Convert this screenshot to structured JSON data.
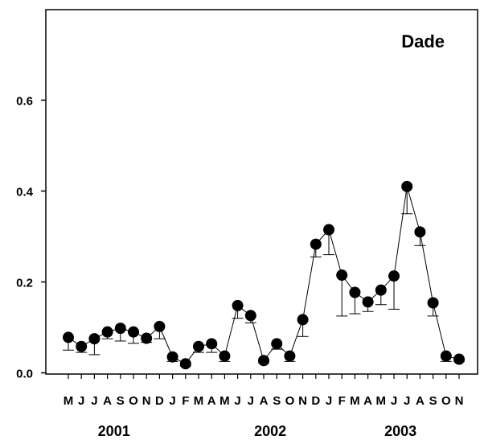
{
  "chart_data": {
    "type": "line",
    "title": "Dade",
    "xlabel": "",
    "ylabel": "",
    "ylim": [
      0,
      0.75
    ],
    "yticks": [
      0.0,
      0.2,
      0.4,
      0.6
    ],
    "ytick_labels": [
      "0.0",
      "0.2",
      "0.4",
      "0.6"
    ],
    "month_labels": [
      "M",
      "J",
      "J",
      "A",
      "S",
      "O",
      "N",
      "D",
      "J",
      "F",
      "M",
      "A",
      "M",
      "J",
      "J",
      "A",
      "S",
      "O",
      "N",
      "D",
      "J",
      "F",
      "M",
      "A",
      "M",
      "J",
      "J",
      "A",
      "S",
      "O",
      "N"
    ],
    "year_labels": [
      {
        "label": "2001",
        "center_index": 3.5
      },
      {
        "label": "2002",
        "center_index": 15.5
      },
      {
        "label": "2003",
        "center_index": 25.5
      }
    ],
    "series": [
      {
        "values": [
          0.078,
          0.058,
          0.075,
          0.09,
          0.098,
          0.09,
          0.076,
          0.102,
          0.035,
          0.02,
          0.058,
          0.064,
          0.037,
          0.148,
          0.126,
          0.027,
          0.064,
          0.037,
          0.117,
          0.283,
          0.315,
          0.215,
          0.177,
          0.156,
          0.182,
          0.213,
          0.41,
          0.31,
          0.154,
          0.037,
          0.03
        ],
        "error_lower": [
          0.05,
          0.045,
          0.04,
          0.075,
          0.07,
          0.065,
          0.067,
          0.075,
          0.025,
          0.015,
          0.045,
          0.045,
          0.025,
          0.12,
          0.11,
          0.022,
          0.052,
          0.025,
          0.08,
          0.255,
          0.26,
          0.125,
          0.13,
          0.135,
          0.15,
          0.14,
          0.35,
          0.28,
          0.125,
          0.025,
          0.025
        ]
      }
    ],
    "grid": false,
    "legend": "none"
  }
}
